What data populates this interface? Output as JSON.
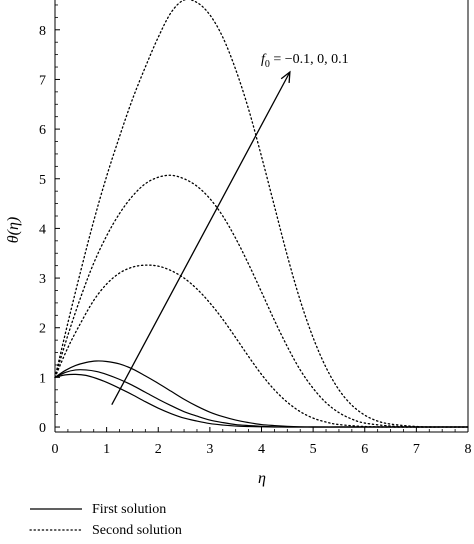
{
  "chart_data": {
    "type": "line",
    "xlabel": "η",
    "ylabel": "θ(η)",
    "xlim": [
      0,
      8
    ],
    "ylim": [
      -0.1,
      8.6
    ],
    "xticks": [
      "0",
      "1",
      "2",
      "3",
      "4",
      "5",
      "6",
      "7",
      "8"
    ],
    "yticks": [
      "0",
      "1",
      "2",
      "3",
      "4",
      "5",
      "6",
      "7",
      "8"
    ],
    "grid": false,
    "legend_position": "bottom-left, below plot",
    "annotation": {
      "text_prefix": "f",
      "text_sub": "0",
      "text_suffix": " = −0.1, 0, 0.1",
      "arrow_from": [
        1.1,
        0.45
      ],
      "arrow_to": [
        4.55,
        7.15
      ]
    },
    "legend": [
      {
        "label": "First solution",
        "style": "solid"
      },
      {
        "label": "Second solution",
        "style": "dotted"
      }
    ],
    "series": [
      {
        "group": "first",
        "style": "solid",
        "f0": "-0.1",
        "x": [
          0,
          0.2,
          0.4,
          0.6,
          0.8,
          1.0,
          1.25,
          1.5,
          1.75,
          2.0,
          2.25,
          2.5,
          2.75,
          3.0,
          3.25,
          3.5,
          3.75,
          4.0,
          4.25,
          4.5,
          5.0,
          5.5,
          6.0,
          7.0,
          8.0
        ],
        "y": [
          1.0,
          1.05,
          1.06,
          1.04,
          0.98,
          0.9,
          0.78,
          0.65,
          0.51,
          0.38,
          0.27,
          0.18,
          0.12,
          0.07,
          0.04,
          0.02,
          0.01,
          0.005,
          0.0,
          0.0,
          0.0,
          0.0,
          0.0,
          0.0,
          0.0
        ]
      },
      {
        "group": "first",
        "style": "solid",
        "f0": "0",
        "x": [
          0,
          0.2,
          0.4,
          0.6,
          0.8,
          1.0,
          1.25,
          1.5,
          1.75,
          2.0,
          2.25,
          2.5,
          2.75,
          3.0,
          3.25,
          3.5,
          3.75,
          4.0,
          4.25,
          4.5,
          5.0,
          5.5,
          6.0,
          7.0,
          8.0
        ],
        "y": [
          1.0,
          1.1,
          1.15,
          1.15,
          1.12,
          1.06,
          0.96,
          0.84,
          0.7,
          0.56,
          0.43,
          0.31,
          0.22,
          0.14,
          0.09,
          0.05,
          0.03,
          0.015,
          0.005,
          0.0,
          0.0,
          0.0,
          0.0,
          0.0,
          0.0
        ]
      },
      {
        "group": "first",
        "style": "solid",
        "f0": "0.1",
        "x": [
          0,
          0.2,
          0.4,
          0.6,
          0.8,
          1.0,
          1.25,
          1.5,
          1.75,
          2.0,
          2.25,
          2.5,
          2.75,
          3.0,
          3.25,
          3.5,
          3.75,
          4.0,
          4.25,
          4.5,
          4.75,
          5.0,
          5.5,
          6.0,
          7.0,
          8.0
        ],
        "y": [
          1.0,
          1.14,
          1.24,
          1.3,
          1.33,
          1.32,
          1.27,
          1.17,
          1.03,
          0.88,
          0.72,
          0.56,
          0.42,
          0.3,
          0.21,
          0.14,
          0.09,
          0.05,
          0.03,
          0.015,
          0.005,
          0.0,
          0.0,
          0.0,
          0.0,
          0.0
        ]
      },
      {
        "group": "second",
        "style": "dotted",
        "f0": "-0.1",
        "x": [
          0,
          0.25,
          0.5,
          0.75,
          1.0,
          1.25,
          1.5,
          1.75,
          2.0,
          2.25,
          2.5,
          2.75,
          3.0,
          3.25,
          3.5,
          3.75,
          4.0,
          4.25,
          4.5,
          4.75,
          5.0,
          5.25,
          5.5,
          6.0,
          6.5,
          7.0,
          7.5,
          8.0
        ],
        "y": [
          1.0,
          1.6,
          2.1,
          2.55,
          2.88,
          3.1,
          3.22,
          3.26,
          3.24,
          3.15,
          3.0,
          2.78,
          2.5,
          2.17,
          1.8,
          1.42,
          1.06,
          0.75,
          0.5,
          0.31,
          0.18,
          0.1,
          0.05,
          0.01,
          0.0,
          0.0,
          0.0,
          0.0
        ]
      },
      {
        "group": "second",
        "style": "dotted",
        "f0": "0",
        "x": [
          0,
          0.25,
          0.5,
          0.75,
          1.0,
          1.25,
          1.5,
          1.75,
          2.0,
          2.25,
          2.5,
          2.75,
          3.0,
          3.25,
          3.5,
          3.75,
          4.0,
          4.25,
          4.5,
          4.75,
          5.0,
          5.25,
          5.5,
          5.75,
          6.0,
          6.5,
          7.0,
          7.5,
          8.0
        ],
        "y": [
          1.0,
          1.85,
          2.62,
          3.3,
          3.85,
          4.3,
          4.65,
          4.9,
          5.03,
          5.07,
          5.0,
          4.85,
          4.6,
          4.25,
          3.8,
          3.28,
          2.72,
          2.15,
          1.62,
          1.15,
          0.78,
          0.49,
          0.29,
          0.16,
          0.08,
          0.02,
          0.0,
          0.0,
          0.0
        ]
      },
      {
        "group": "second",
        "style": "dotted",
        "f0": "0.1",
        "x": [
          0,
          0.25,
          0.5,
          0.75,
          1.0,
          1.25,
          1.5,
          1.75,
          2.0,
          2.25,
          2.5,
          2.75,
          3.0,
          3.25,
          3.5,
          3.75,
          4.0,
          4.25,
          4.5,
          4.75,
          5.0,
          5.25,
          5.5,
          5.75,
          6.0,
          6.25,
          6.5,
          7.0,
          7.5,
          8.0
        ],
        "y": [
          1.0,
          2.1,
          3.15,
          4.15,
          5.05,
          5.85,
          6.6,
          7.25,
          7.85,
          8.35,
          8.6,
          8.55,
          8.3,
          7.85,
          7.2,
          6.4,
          5.45,
          4.45,
          3.45,
          2.55,
          1.8,
          1.2,
          0.75,
          0.44,
          0.24,
          0.12,
          0.06,
          0.01,
          0.0,
          0.0
        ]
      }
    ]
  }
}
